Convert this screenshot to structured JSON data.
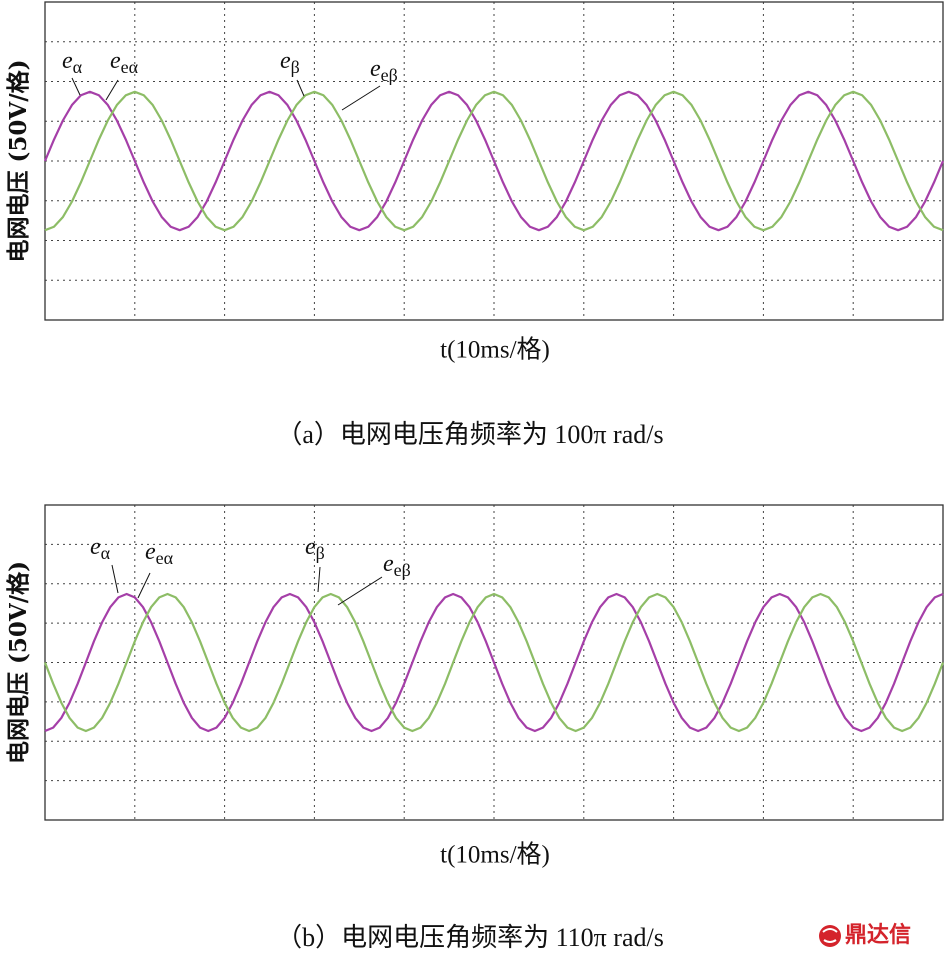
{
  "chart_data": [
    {
      "type": "line",
      "caption": "（a）电网电压角频率为 100π rad/s",
      "x_label": "t(10ms/格)",
      "y_label": "电网电压 (50V/格)",
      "annotations": [
        {
          "base": "e",
          "sub": "α"
        },
        {
          "base": "e",
          "sub": "eα"
        },
        {
          "base": "e",
          "sub": "β"
        },
        {
          "base": "e",
          "sub": "eβ"
        }
      ],
      "xlim": [
        0,
        100
      ],
      "xticks": [
        0,
        10,
        20,
        30,
        40,
        50,
        60,
        70,
        80,
        90,
        100
      ],
      "ylim": [
        -200,
        200
      ],
      "yticks": [
        -200,
        -150,
        -100,
        -50,
        0,
        50,
        100,
        150,
        200
      ],
      "grid": true,
      "x": [
        0,
        1,
        2,
        3,
        4,
        5,
        6,
        7,
        8,
        9,
        10,
        11,
        12,
        13,
        14,
        15,
        16,
        17,
        18,
        19,
        20,
        21,
        22,
        23,
        24,
        25,
        26,
        27,
        28,
        29,
        30,
        31,
        32,
        33,
        34,
        35,
        36,
        37,
        38,
        39,
        40,
        41,
        42,
        43,
        44,
        45,
        46,
        47,
        48,
        49,
        50,
        51,
        52,
        53,
        54,
        55,
        56,
        57,
        58,
        59,
        60,
        61,
        62,
        63,
        64,
        65,
        66,
        67,
        68,
        69,
        70,
        71,
        72,
        73,
        74,
        75,
        76,
        77,
        78,
        79,
        80,
        81,
        82,
        83,
        84,
        85,
        86,
        87,
        88,
        89,
        90,
        91,
        92,
        93,
        94,
        95,
        96,
        97,
        98,
        99,
        100
      ],
      "series": [
        {
          "color": "#a53fa8",
          "values": [
            0,
            26.9,
            51.1,
            70.4,
            82.7,
            87,
            82.7,
            70.4,
            51.1,
            26.9,
            0,
            -26.9,
            -51.1,
            -70.4,
            -82.7,
            -87,
            -82.7,
            -70.4,
            -51.1,
            -26.9,
            0,
            26.9,
            51.1,
            70.4,
            82.7,
            87,
            82.7,
            70.4,
            51.1,
            26.9,
            0,
            -26.9,
            -51.1,
            -70.4,
            -82.7,
            -87,
            -82.7,
            -70.4,
            -51.1,
            -26.9,
            0,
            26.9,
            51.1,
            70.4,
            82.7,
            87,
            82.7,
            70.4,
            51.1,
            26.9,
            0,
            -26.9,
            -51.1,
            -70.4,
            -82.7,
            -87,
            -82.7,
            -70.4,
            -51.1,
            -26.9,
            0,
            26.9,
            51.1,
            70.4,
            82.7,
            87,
            82.7,
            70.4,
            51.1,
            26.9,
            0,
            -26.9,
            -51.1,
            -70.4,
            -82.7,
            -87,
            -82.7,
            -70.4,
            -51.1,
            -26.9,
            0,
            26.9,
            51.1,
            70.4,
            82.7,
            87,
            82.7,
            70.4,
            51.1,
            26.9,
            0,
            -26.9,
            -51.1,
            -70.4,
            -82.7,
            -87,
            -82.7,
            -70.4,
            -51.1,
            -26.9,
            0
          ]
        },
        {
          "color": "#8dbd66",
          "values": [
            -87,
            -82.7,
            -70.4,
            -51.1,
            -26.9,
            0,
            26.9,
            51.1,
            70.4,
            82.7,
            87,
            82.7,
            70.4,
            51.1,
            26.9,
            0,
            -26.9,
            -51.1,
            -70.4,
            -82.7,
            -87,
            -82.7,
            -70.4,
            -51.1,
            -26.9,
            0,
            26.9,
            51.1,
            70.4,
            82.7,
            87,
            82.7,
            70.4,
            51.1,
            26.9,
            0,
            -26.9,
            -51.1,
            -70.4,
            -82.7,
            -87,
            -82.7,
            -70.4,
            -51.1,
            -26.9,
            0,
            26.9,
            51.1,
            70.4,
            82.7,
            87,
            82.7,
            70.4,
            51.1,
            26.9,
            0,
            -26.9,
            -51.1,
            -70.4,
            -82.7,
            -87,
            -82.7,
            -70.4,
            -51.1,
            -26.9,
            0,
            26.9,
            51.1,
            70.4,
            82.7,
            87,
            82.7,
            70.4,
            51.1,
            26.9,
            0,
            -26.9,
            -51.1,
            -70.4,
            -82.7,
            -87,
            -82.7,
            -70.4,
            -51.1,
            -26.9,
            0,
            26.9,
            51.1,
            70.4,
            82.7,
            87,
            82.7,
            70.4,
            51.1,
            26.9,
            0,
            -26.9,
            -51.1,
            -70.4,
            -82.7,
            -87
          ]
        }
      ]
    },
    {
      "type": "line",
      "caption": "（b）电网电压角频率为 110π rad/s",
      "x_label": "t(10ms/格)",
      "y_label": "电网电压 (50V/格)",
      "annotations": [
        {
          "base": "e",
          "sub": "α"
        },
        {
          "base": "e",
          "sub": "eα"
        },
        {
          "base": "e",
          "sub": "β"
        },
        {
          "base": "e",
          "sub": "eβ"
        }
      ],
      "xlim": [
        0,
        100
      ],
      "xticks": [
        0,
        10,
        20,
        30,
        40,
        50,
        60,
        70,
        80,
        90,
        100
      ],
      "ylim": [
        -200,
        200
      ],
      "yticks": [
        -200,
        -150,
        -100,
        -50,
        0,
        50,
        100,
        150,
        200
      ],
      "grid": true,
      "x": [
        0,
        0.91,
        1.82,
        2.73,
        3.64,
        4.55,
        5.45,
        6.36,
        7.27,
        8.18,
        9.09,
        10,
        10.91,
        11.82,
        12.73,
        13.64,
        14.55,
        15.45,
        16.36,
        17.27,
        18.18,
        19.09,
        20,
        20.91,
        21.82,
        22.73,
        23.64,
        24.55,
        25.45,
        26.36,
        27.27,
        28.18,
        29.09,
        30,
        30.91,
        31.82,
        32.73,
        33.64,
        34.55,
        35.45,
        36.36,
        37.27,
        38.18,
        39.09,
        40,
        40.91,
        41.82,
        42.73,
        43.64,
        44.55,
        45.45,
        46.36,
        47.27,
        48.18,
        49.09,
        50,
        50.91,
        51.82,
        52.73,
        53.64,
        54.55,
        55.45,
        56.36,
        57.27,
        58.18,
        59.09,
        60,
        60.91,
        61.82,
        62.73,
        63.64,
        64.55,
        65.45,
        66.36,
        67.27,
        68.18,
        69.09,
        70,
        70.91,
        71.82,
        72.73,
        73.64,
        74.55,
        75.45,
        76.36,
        77.27,
        78.18,
        79.09,
        80,
        80.91,
        81.82,
        82.73,
        83.64,
        84.55,
        85.45,
        86.36,
        87.27,
        88.18,
        89.09,
        90,
        90.91,
        91.82,
        92.73,
        93.64,
        94.55,
        95.45,
        96.36,
        97.27,
        98.18,
        99.09,
        100
      ],
      "series": [
        {
          "color": "#a53fa8",
          "values": [
            -87,
            -82.7,
            -70.4,
            -51.1,
            -26.9,
            0,
            26.9,
            51.1,
            70.4,
            82.7,
            87,
            82.7,
            70.4,
            51.1,
            26.9,
            0,
            -26.9,
            -51.1,
            -70.4,
            -82.7,
            -87,
            -82.7,
            -70.4,
            -51.1,
            -26.9,
            0,
            26.9,
            51.1,
            70.4,
            82.7,
            87,
            82.7,
            70.4,
            51.1,
            26.9,
            0,
            -26.9,
            -51.1,
            -70.4,
            -82.7,
            -87,
            -82.7,
            -70.4,
            -51.1,
            -26.9,
            0,
            26.9,
            51.1,
            70.4,
            82.7,
            87,
            82.7,
            70.4,
            51.1,
            26.9,
            0,
            -26.9,
            -51.1,
            -70.4,
            -82.7,
            -87,
            -82.7,
            -70.4,
            -51.1,
            -26.9,
            0,
            26.9,
            51.1,
            70.4,
            82.7,
            87,
            82.7,
            70.4,
            51.1,
            26.9,
            0,
            -26.9,
            -51.1,
            -70.4,
            -82.7,
            -87,
            -82.7,
            -70.4,
            -51.1,
            -26.9,
            0,
            26.9,
            51.1,
            70.4,
            82.7,
            87,
            82.7,
            70.4,
            51.1,
            26.9,
            0,
            -26.9,
            -51.1,
            -70.4,
            -82.7,
            -87,
            -82.7,
            -70.4,
            -51.1,
            -26.9,
            0,
            26.9,
            51.1,
            70.4,
            82.7,
            87
          ]
        },
        {
          "color": "#8dbd66",
          "values": [
            0,
            -26.9,
            -51.1,
            -70.4,
            -82.7,
            -87,
            -82.7,
            -70.4,
            -51.1,
            -26.9,
            0,
            26.9,
            51.1,
            70.4,
            82.7,
            87,
            82.7,
            70.4,
            51.1,
            26.9,
            0,
            -26.9,
            -51.1,
            -70.4,
            -82.7,
            -87,
            -82.7,
            -70.4,
            -51.1,
            -26.9,
            0,
            26.9,
            51.1,
            70.4,
            82.7,
            87,
            82.7,
            70.4,
            51.1,
            26.9,
            0,
            -26.9,
            -51.1,
            -70.4,
            -82.7,
            -87,
            -82.7,
            -70.4,
            -51.1,
            -26.9,
            0,
            26.9,
            51.1,
            70.4,
            82.7,
            87,
            82.7,
            70.4,
            51.1,
            26.9,
            0,
            -26.9,
            -51.1,
            -70.4,
            -82.7,
            -87,
            -82.7,
            -70.4,
            -51.1,
            -26.9,
            0,
            26.9,
            51.1,
            70.4,
            82.7,
            87,
            82.7,
            70.4,
            51.1,
            26.9,
            0,
            -26.9,
            -51.1,
            -70.4,
            -82.7,
            -87,
            -82.7,
            -70.4,
            -51.1,
            -26.9,
            0,
            26.9,
            51.1,
            70.4,
            82.7,
            87,
            82.7,
            70.4,
            51.1,
            26.9,
            0,
            -26.9,
            -51.1,
            -70.4,
            -82.7,
            -87,
            -82.7,
            -70.4,
            -51.1,
            -26.9,
            0
          ]
        }
      ]
    }
  ],
  "watermark": "鼎达信"
}
